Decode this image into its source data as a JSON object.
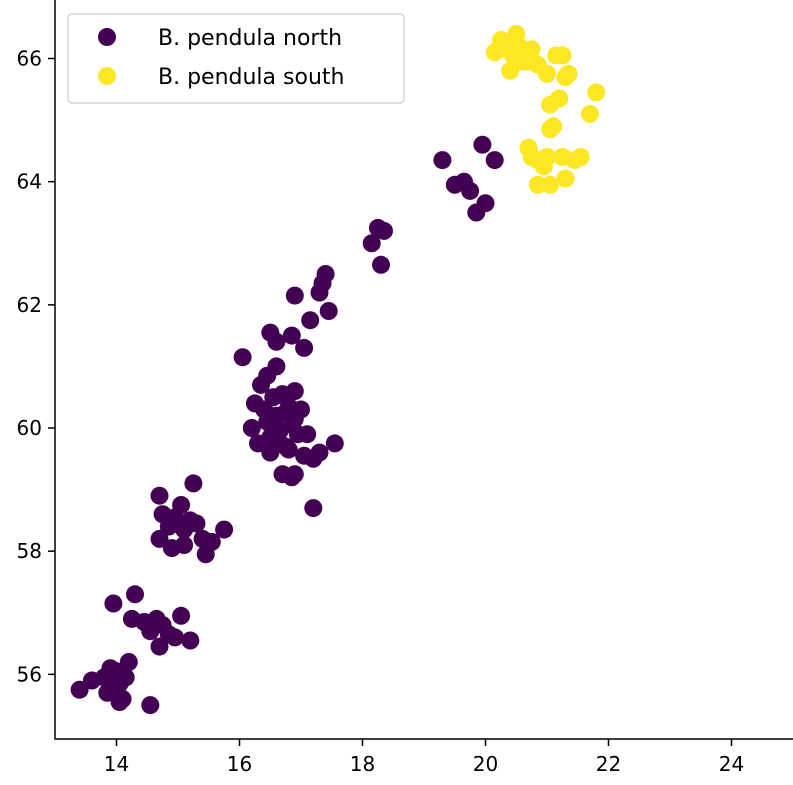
{
  "chart_data": {
    "type": "scatter",
    "title": "",
    "xlabel": "",
    "ylabel": "",
    "xlim": [
      13.0,
      25.0
    ],
    "ylim": [
      54.95,
      66.95
    ],
    "xticks": [
      14,
      16,
      18,
      20,
      22,
      24
    ],
    "yticks": [
      56,
      58,
      60,
      62,
      64,
      66
    ],
    "grid": false,
    "legend": {
      "placement": "top-left"
    },
    "series": [
      {
        "name": "B. pendula north",
        "color": "#440154",
        "points": [
          [
            13.4,
            55.75
          ],
          [
            13.6,
            55.9
          ],
          [
            13.8,
            55.95
          ],
          [
            13.85,
            55.7
          ],
          [
            13.9,
            56.1
          ],
          [
            13.95,
            55.8
          ],
          [
            14.0,
            56.05
          ],
          [
            14.05,
            55.85
          ],
          [
            14.1,
            55.6
          ],
          [
            14.15,
            55.95
          ],
          [
            14.2,
            56.2
          ],
          [
            14.05,
            55.55
          ],
          [
            14.0,
            55.75
          ],
          [
            14.55,
            55.5
          ],
          [
            13.95,
            57.15
          ],
          [
            14.3,
            57.3
          ],
          [
            14.25,
            56.9
          ],
          [
            14.45,
            56.85
          ],
          [
            14.55,
            56.7
          ],
          [
            14.65,
            56.9
          ],
          [
            14.75,
            56.8
          ],
          [
            14.85,
            56.65
          ],
          [
            14.7,
            56.45
          ],
          [
            14.95,
            56.6
          ],
          [
            15.05,
            56.95
          ],
          [
            15.2,
            56.55
          ],
          [
            14.7,
            58.2
          ],
          [
            14.9,
            58.05
          ],
          [
            14.75,
            58.6
          ],
          [
            14.85,
            58.4
          ],
          [
            14.95,
            58.55
          ],
          [
            15.05,
            58.75
          ],
          [
            15.1,
            58.35
          ],
          [
            15.2,
            58.5
          ],
          [
            15.3,
            58.45
          ],
          [
            15.4,
            58.2
          ],
          [
            15.45,
            57.95
          ],
          [
            15.55,
            58.15
          ],
          [
            15.75,
            58.35
          ],
          [
            15.1,
            58.1
          ],
          [
            14.7,
            58.9
          ],
          [
            15.25,
            59.1
          ],
          [
            16.2,
            60.0
          ],
          [
            16.25,
            60.4
          ],
          [
            16.35,
            60.7
          ],
          [
            16.4,
            60.3
          ],
          [
            16.45,
            60.1
          ],
          [
            16.5,
            59.85
          ],
          [
            16.55,
            60.5
          ],
          [
            16.6,
            60.2
          ],
          [
            16.6,
            61.0
          ],
          [
            16.65,
            59.95
          ],
          [
            16.7,
            60.55
          ],
          [
            16.75,
            60.25
          ],
          [
            16.75,
            59.7
          ],
          [
            16.8,
            60.35
          ],
          [
            16.85,
            60.05
          ],
          [
            16.9,
            60.6
          ],
          [
            16.95,
            59.9
          ],
          [
            17.0,
            60.3
          ],
          [
            17.05,
            59.55
          ],
          [
            17.1,
            59.9
          ],
          [
            17.2,
            59.5
          ],
          [
            17.3,
            59.6
          ],
          [
            17.55,
            59.75
          ],
          [
            16.9,
            59.25
          ],
          [
            16.7,
            59.25
          ],
          [
            16.3,
            59.75
          ],
          [
            16.5,
            59.6
          ],
          [
            16.6,
            59.75
          ],
          [
            17.2,
            58.7
          ],
          [
            16.85,
            59.2
          ],
          [
            16.45,
            60.85
          ],
          [
            16.6,
            60.0
          ],
          [
            16.8,
            59.65
          ],
          [
            16.9,
            60.15
          ],
          [
            16.05,
            61.15
          ],
          [
            16.5,
            61.55
          ],
          [
            16.6,
            61.4
          ],
          [
            16.85,
            61.5
          ],
          [
            17.05,
            61.3
          ],
          [
            17.15,
            61.75
          ],
          [
            16.9,
            62.15
          ],
          [
            17.3,
            62.2
          ],
          [
            17.35,
            62.35
          ],
          [
            17.4,
            62.5
          ],
          [
            17.45,
            61.9
          ],
          [
            18.15,
            63.0
          ],
          [
            18.25,
            63.25
          ],
          [
            18.35,
            63.2
          ],
          [
            18.3,
            62.65
          ],
          [
            19.3,
            64.35
          ],
          [
            19.5,
            63.95
          ],
          [
            19.65,
            64.0
          ],
          [
            19.75,
            63.85
          ],
          [
            19.85,
            63.5
          ],
          [
            20.0,
            63.65
          ],
          [
            19.95,
            64.6
          ],
          [
            20.15,
            64.35
          ]
        ]
      },
      {
        "name": "B. pendula south",
        "color": "#fde725",
        "points": [
          [
            20.15,
            66.1
          ],
          [
            20.25,
            66.3
          ],
          [
            20.35,
            66.15
          ],
          [
            20.4,
            65.8
          ],
          [
            20.45,
            66.05
          ],
          [
            20.5,
            66.4
          ],
          [
            20.55,
            66.2
          ],
          [
            20.6,
            65.95
          ],
          [
            20.65,
            66.05
          ],
          [
            20.7,
            65.95
          ],
          [
            20.75,
            66.15
          ],
          [
            20.85,
            65.9
          ],
          [
            21.0,
            65.75
          ],
          [
            21.15,
            66.05
          ],
          [
            21.25,
            66.05
          ],
          [
            21.3,
            65.7
          ],
          [
            21.35,
            65.75
          ],
          [
            21.8,
            65.45
          ],
          [
            21.7,
            65.1
          ],
          [
            21.05,
            65.25
          ],
          [
            21.2,
            65.35
          ],
          [
            21.1,
            64.9
          ],
          [
            21.05,
            64.85
          ],
          [
            20.7,
            64.55
          ],
          [
            20.75,
            64.4
          ],
          [
            20.85,
            64.35
          ],
          [
            20.95,
            64.25
          ],
          [
            21.0,
            64.4
          ],
          [
            21.25,
            64.4
          ],
          [
            21.3,
            64.05
          ],
          [
            21.45,
            64.35
          ],
          [
            21.55,
            64.4
          ],
          [
            20.85,
            63.95
          ],
          [
            21.05,
            63.95
          ]
        ]
      }
    ]
  }
}
